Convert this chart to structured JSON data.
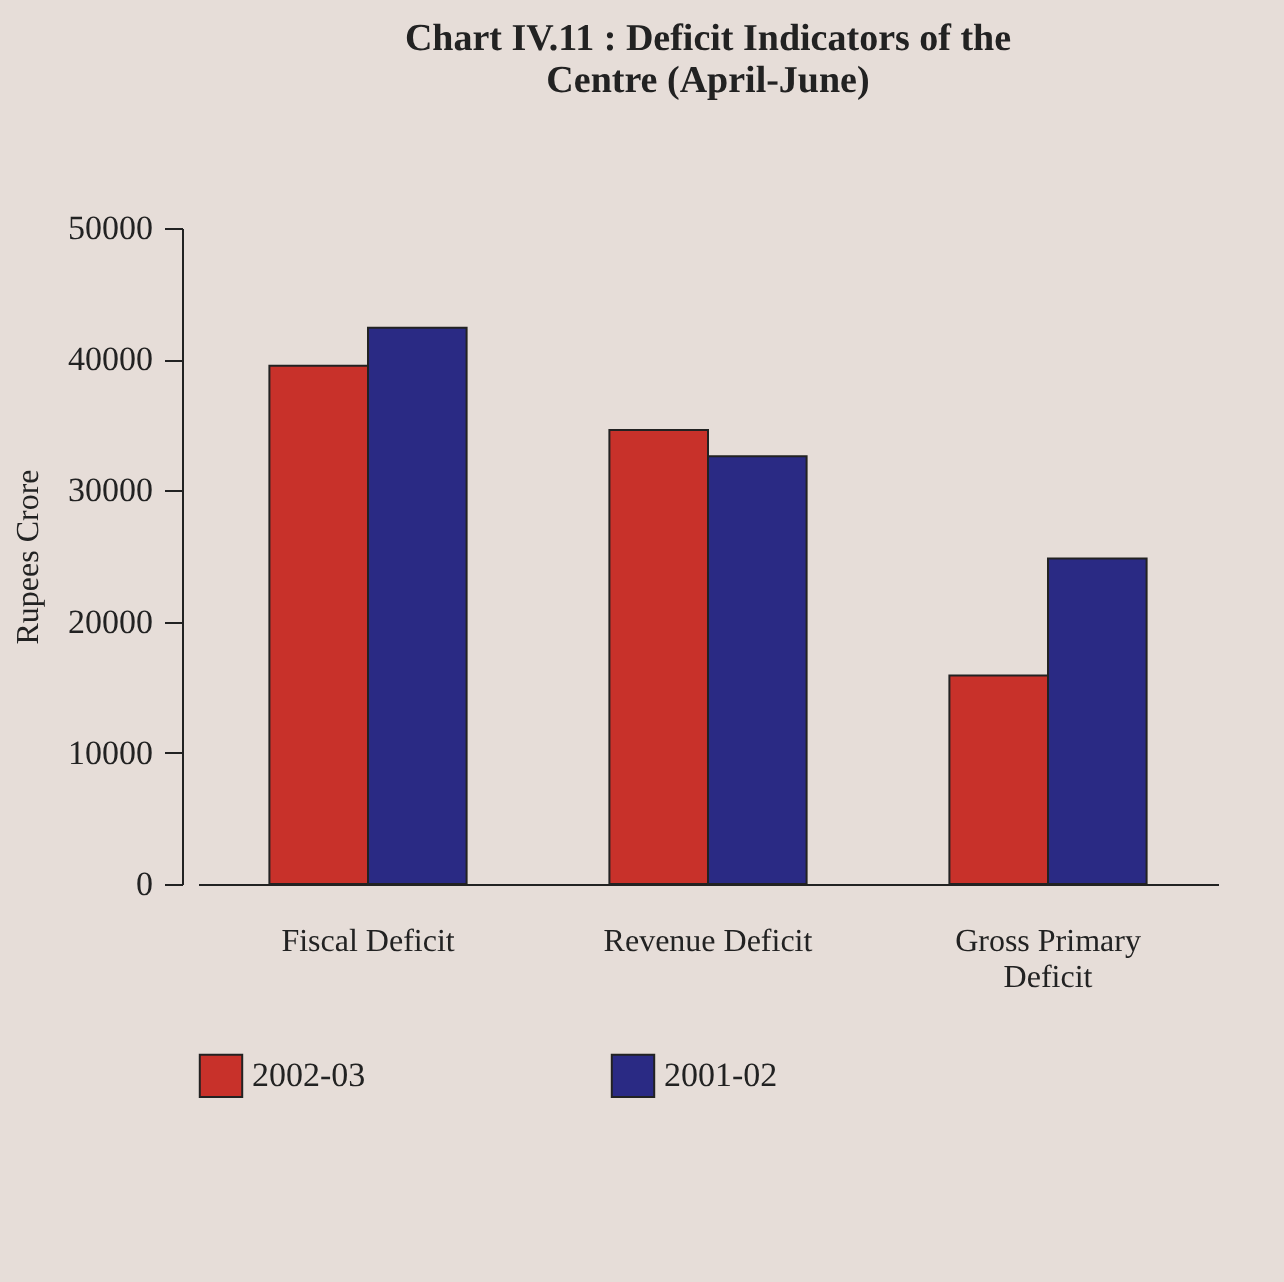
{
  "chart_data": {
    "type": "bar",
    "title": "Chart IV.11 : Deficit Indicators of the Centre (April-June)",
    "ylabel": "Rupees Crore",
    "categories": [
      "Fiscal Deficit",
      "Revenue Deficit",
      "Gross Primary Deficit"
    ],
    "series": [
      {
        "name": "2002-03",
        "color": "#c8312a",
        "values": [
          39500,
          34600,
          15900
        ]
      },
      {
        "name": "2001-02",
        "color": "#2a2a84",
        "values": [
          42400,
          32600,
          24800
        ]
      }
    ],
    "ylim": [
      0,
      50000
    ],
    "yticks": [
      0,
      10000,
      20000,
      30000,
      40000,
      50000
    ],
    "grid": false,
    "legend": "bottom"
  }
}
